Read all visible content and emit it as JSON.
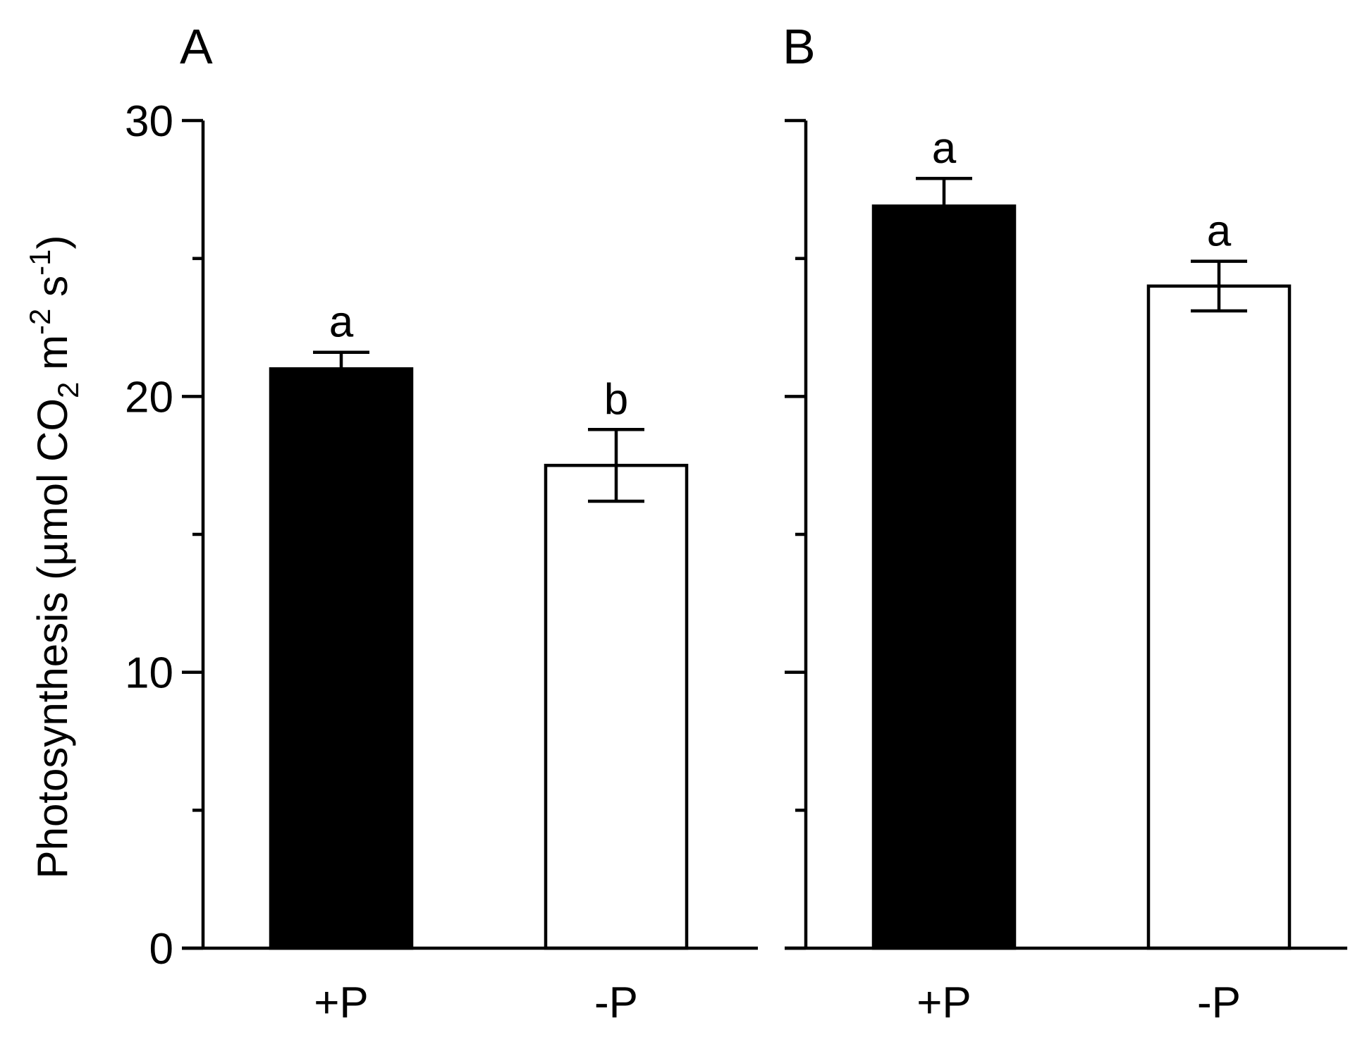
{
  "chart_data": [
    {
      "type": "bar",
      "panel_label": "A",
      "categories": [
        "+P",
        "-P"
      ],
      "values": [
        21.0,
        17.5
      ],
      "errors": [
        0.6,
        1.3
      ],
      "significance": [
        "a",
        "b"
      ],
      "bar_fills": [
        "#000000",
        "#ffffff"
      ],
      "ylim": [
        0,
        30
      ],
      "yticks_labeled": [
        "0",
        "10",
        "20",
        "30"
      ],
      "ytick_values": [
        0,
        5,
        10,
        15,
        20,
        25,
        30
      ],
      "show_tick_labels": true
    },
    {
      "type": "bar",
      "panel_label": "B",
      "categories": [
        "+P",
        "-P"
      ],
      "values": [
        26.9,
        24.0
      ],
      "errors": [
        1.0,
        0.9
      ],
      "significance": [
        "a",
        "a"
      ],
      "bar_fills": [
        "#000000",
        "#ffffff"
      ],
      "ylim": [
        0,
        30
      ],
      "ytick_values": [
        0,
        5,
        10,
        15,
        20,
        25,
        30
      ],
      "show_tick_labels": false
    }
  ],
  "ylabel": {
    "prefix": "Photosynthesis (µmol CO",
    "sub": "2",
    "mid1": " m",
    "sup1": "-2",
    "mid2": " s",
    "sup2": "-1",
    "suffix": ")"
  }
}
